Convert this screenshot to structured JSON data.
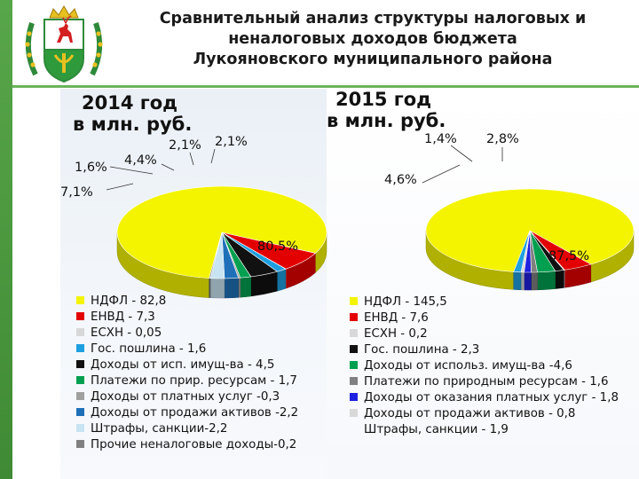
{
  "header": {
    "title_lines": [
      "Сравнительный анализ структуры налоговых и",
      "неналоговых доходов бюджета",
      "Лукояновского муниципального района"
    ]
  },
  "colors": {
    "side_bar": "#4c9a40",
    "accent_green": "#6cb35c"
  },
  "chart_data": [
    {
      "type": "pie",
      "title_lines": [
        "2014 год",
        "в млн. руб."
      ],
      "slices": [
        {
          "name": "НДФЛ",
          "value": 82.8,
          "color": "#f4f400"
        },
        {
          "name": "ЕНВД",
          "value": 7.3,
          "color": "#e30000"
        },
        {
          "name": "ЕСХН",
          "value": 0.05,
          "color": "#d8d8d8"
        },
        {
          "name": "Гос. пошлина",
          "value": 1.6,
          "color": "#1e9fe0"
        },
        {
          "name": "Доходы от исп. имущ-ва",
          "value": 4.5,
          "color": "#111111"
        },
        {
          "name": "Платежи по прир. ресурсам",
          "value": 1.7,
          "color": "#00a050"
        },
        {
          "name": "Доходы от платных услуг",
          "value": 0.3,
          "color": "#a0a0a0"
        },
        {
          "name": "Доходы от продажи активов",
          "value": 2.2,
          "color": "#1f70b8"
        },
        {
          "name": "Штрафы, санкции",
          "value": 2.2,
          "color": "#c8e4f2"
        },
        {
          "name": "Прочие неналоговые доходы",
          "value": 0.2,
          "color": "#808080"
        }
      ],
      "data_labels": [
        "80,5%",
        "7,1%",
        "1,6%",
        "4,4%",
        "2,1%",
        "2,1%"
      ],
      "legend": [
        "НДФЛ - 82,8",
        "ЕНВД - 7,3",
        "ЕСХН - 0,05",
        "Гос. пошлина - 1,6",
        "Доходы от исп. имущ-ва - 4,5",
        "Платежи по прир. ресурсам - 1,7",
        "Доходы от платных услуг -0,3",
        "Доходы от продажи активов -2,2",
        "Штрафы, санкции-2,2",
        "Прочие неналоговые доходы-0,2"
      ]
    },
    {
      "type": "pie",
      "title_lines": [
        "2015 год",
        "в млн. руб."
      ],
      "slices": [
        {
          "name": "НДФЛ",
          "value": 145.5,
          "color": "#f4f400"
        },
        {
          "name": "ЕНВД",
          "value": 7.6,
          "color": "#e30000"
        },
        {
          "name": "ЕСХН",
          "value": 0.2,
          "color": "#d8d8d8"
        },
        {
          "name": "Гос. пошлина",
          "value": 2.3,
          "color": "#111111"
        },
        {
          "name": "Доходы от использ. имущ-ва",
          "value": 4.6,
          "color": "#00a050"
        },
        {
          "name": "Платежи по природным ресурсам",
          "value": 1.6,
          "color": "#808080"
        },
        {
          "name": "Доходы от оказания платных услуг",
          "value": 1.8,
          "color": "#2020e0"
        },
        {
          "name": "Доходы от продажи активов",
          "value": 0.8,
          "color": "#d8d8d8"
        },
        {
          "name": "Штрафы, санкции",
          "value": 1.9,
          "color": "#1e9fe0"
        }
      ],
      "data_labels": [
        "87,5%",
        "4,6%",
        "1,4%",
        "2,8%"
      ],
      "legend": [
        "НДФЛ - 145,5",
        "ЕНВД - 7,6",
        "ЕСХН - 0,2",
        "Гос. пошлина - 2,3",
        "Доходы от использ. имущ-ва -4,6",
        "Платежи по природным ресурсам - 1,6",
        "Доходы от оказания платных услуг - 1,8",
        "Доходы от продажи активов - 0,8",
        "Штрафы, санкции - 1,9"
      ]
    }
  ]
}
